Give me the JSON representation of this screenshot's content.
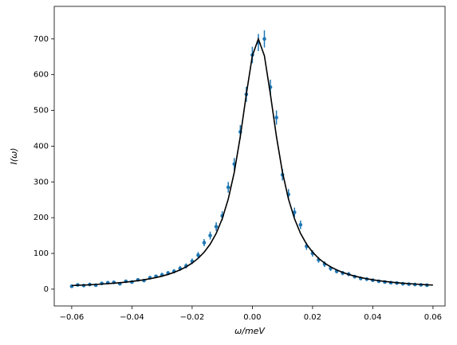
{
  "chart_data": {
    "type": "scatter",
    "xlabel": "ω/meV",
    "ylabel": "I(ω)",
    "xlim": [
      -0.0658,
      0.064
    ],
    "ylim": [
      -47,
      791
    ],
    "xticks": [
      {
        "value": -0.06,
        "label": "−0.06"
      },
      {
        "value": -0.04,
        "label": "−0.04"
      },
      {
        "value": -0.02,
        "label": "−0.02"
      },
      {
        "value": 0,
        "label": "0.00"
      },
      0.02,
      0.04,
      0.06
    ],
    "yticks": [
      0,
      100,
      200,
      300,
      400,
      500,
      600,
      700
    ],
    "series": [
      {
        "kind": "errorbar",
        "color": "#1f77b4",
        "x": [
          -0.06,
          -0.058,
          -0.056,
          -0.054,
          -0.052,
          -0.05,
          -0.048,
          -0.046,
          -0.044,
          -0.042,
          -0.04,
          -0.038,
          -0.036,
          -0.034,
          -0.032,
          -0.03,
          -0.028,
          -0.026,
          -0.024,
          -0.022,
          -0.02,
          -0.018,
          -0.016,
          -0.014,
          -0.012,
          -0.01,
          -0.008,
          -0.006,
          -0.004,
          -0.002,
          0,
          0.002,
          0.004,
          0.006,
          0.008,
          0.01,
          0.012,
          0.014,
          0.016,
          0.018,
          0.02,
          0.022,
          0.024,
          0.026,
          0.028,
          0.03,
          0.032,
          0.034,
          0.036,
          0.038,
          0.04,
          0.042,
          0.044,
          0.046,
          0.048,
          0.05,
          0.052,
          0.054,
          0.056,
          0.058
        ],
        "values": [
          8,
          12,
          10,
          13,
          11,
          16,
          18,
          19,
          15,
          22,
          20,
          26,
          24,
          32,
          36,
          40,
          45,
          50,
          58,
          65,
          78,
          95,
          130,
          150,
          175,
          205,
          285,
          350,
          440,
          545,
          655,
          690,
          700,
          565,
          480,
          320,
          265,
          215,
          180,
          120,
          100,
          82,
          70,
          58,
          50,
          45,
          42,
          35,
          30,
          28,
          25,
          22,
          20,
          18,
          17,
          15,
          14,
          13,
          12,
          11
        ],
        "errors": [
          3,
          3,
          3,
          3,
          3,
          4,
          4,
          4,
          3,
          4,
          4,
          5,
          4,
          5,
          5,
          6,
          6,
          6,
          7,
          7,
          8,
          9,
          10,
          11,
          12,
          13,
          15,
          17,
          19,
          21,
          23,
          24,
          24,
          21,
          20,
          16,
          15,
          13,
          12,
          10,
          9,
          8,
          8,
          7,
          6,
          6,
          6,
          5,
          5,
          5,
          5,
          4,
          4,
          4,
          4,
          3,
          3,
          3,
          3,
          3
        ]
      },
      {
        "kind": "line",
        "color": "#000000",
        "x": [
          -0.06,
          -0.058,
          -0.056,
          -0.054,
          -0.052,
          -0.05,
          -0.048,
          -0.046,
          -0.044,
          -0.042,
          -0.04,
          -0.038,
          -0.036,
          -0.034,
          -0.032,
          -0.03,
          -0.028,
          -0.026,
          -0.024,
          -0.022,
          -0.02,
          -0.018,
          -0.016,
          -0.014,
          -0.012,
          -0.01,
          -0.008,
          -0.006,
          -0.004,
          -0.002,
          0,
          0.002,
          0.004,
          0.006,
          0.008,
          0.01,
          0.012,
          0.014,
          0.016,
          0.018,
          0.02,
          0.022,
          0.024,
          0.026,
          0.028,
          0.03,
          0.032,
          0.034,
          0.036,
          0.038,
          0.04,
          0.042,
          0.044,
          0.046,
          0.048,
          0.05,
          0.052,
          0.054,
          0.056,
          0.058,
          0.06
        ],
        "values": [
          10.1,
          10.8,
          11.5,
          12.3,
          13.2,
          14.3,
          15.4,
          16.7,
          18.1,
          19.8,
          21.6,
          23.8,
          26.2,
          29.1,
          32.5,
          36.4,
          41.2,
          46.9,
          53.8,
          62.3,
          72.9,
          86.3,
          103.5,
          126,
          156,
          197,
          252,
          327,
          427,
          545,
          653,
          700,
          653,
          545,
          427,
          327,
          252,
          197,
          156,
          126,
          103.5,
          86.3,
          72.9,
          62.3,
          53.8,
          46.9,
          41.2,
          36.4,
          32.5,
          29.1,
          26.2,
          23.8,
          21.6,
          19.8,
          18.1,
          16.7,
          15.4,
          14.3,
          13.2,
          12.3,
          11.5
        ]
      }
    ]
  }
}
